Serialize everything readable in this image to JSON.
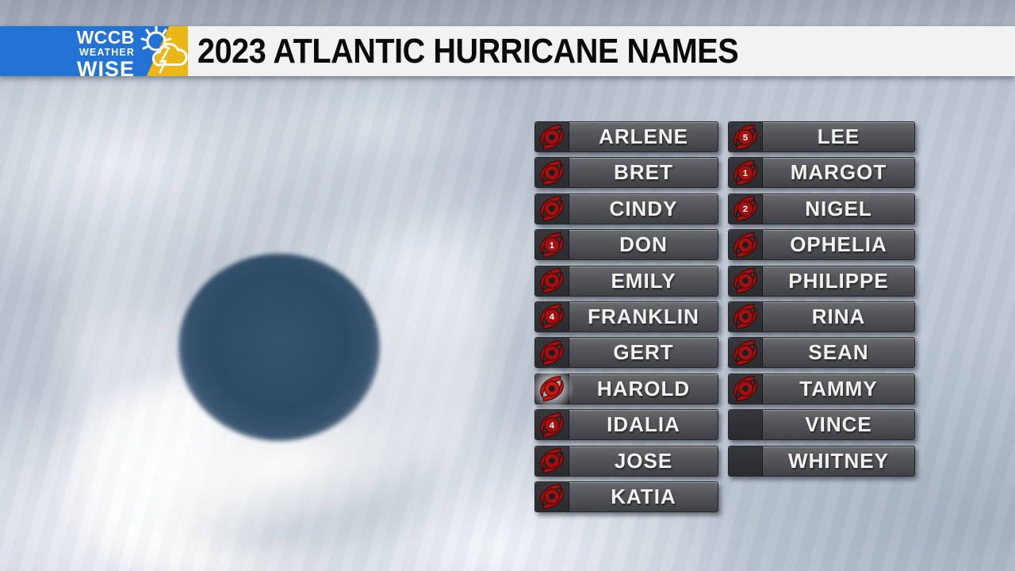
{
  "header": {
    "logo": {
      "line1": "WCCB",
      "line2": "WEATHER",
      "line3": "WISE"
    },
    "title": "2023 ATLANTIC HURRICANE NAMES"
  },
  "colors": {
    "logo_blue": "#2273d3",
    "logo_yellow": "#eab717",
    "title_bar_bg": "#f2f2f2",
    "title_text": "#0a0a0a",
    "bar_gray": "#54555a",
    "icon_cell_gray": "#2d2e31",
    "hurricane_red": "#a01212",
    "hurricane_red_highlight": "#c41717",
    "eye_navy": "#2b4a66"
  },
  "list": {
    "col1": [
      {
        "name": "ARLENE",
        "icon": "storm"
      },
      {
        "name": "BRET",
        "icon": "storm"
      },
      {
        "name": "CINDY",
        "icon": "storm"
      },
      {
        "name": "DON",
        "icon": "1"
      },
      {
        "name": "EMILY",
        "icon": "storm"
      },
      {
        "name": "FRANKLIN",
        "icon": "4"
      },
      {
        "name": "GERT",
        "icon": "storm"
      },
      {
        "name": "HAROLD",
        "icon": "storm",
        "highlight": true
      },
      {
        "name": "IDALIA",
        "icon": "4"
      },
      {
        "name": "JOSE",
        "icon": "storm"
      },
      {
        "name": "KATIA",
        "icon": "storm"
      }
    ],
    "col2": [
      {
        "name": "LEE",
        "icon": "5"
      },
      {
        "name": "MARGOT",
        "icon": "1"
      },
      {
        "name": "NIGEL",
        "icon": "2"
      },
      {
        "name": "OPHELIA",
        "icon": "storm"
      },
      {
        "name": "PHILIPPE",
        "icon": "storm"
      },
      {
        "name": "RINA",
        "icon": "storm"
      },
      {
        "name": "SEAN",
        "icon": "storm"
      },
      {
        "name": "TAMMY",
        "icon": "storm"
      },
      {
        "name": "VINCE",
        "icon": "none"
      },
      {
        "name": "WHITNEY",
        "icon": "none"
      }
    ]
  }
}
